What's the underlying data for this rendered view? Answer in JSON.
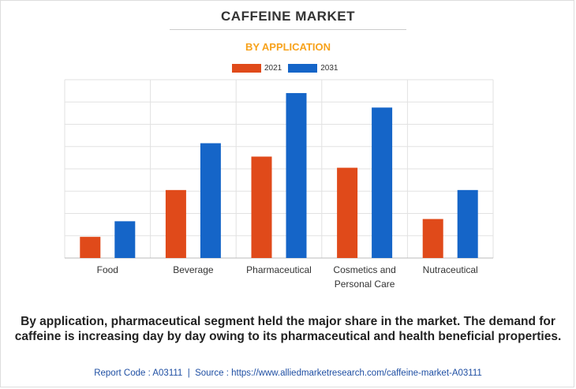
{
  "title": "CAFFEINE MARKET",
  "subtitle": "BY APPLICATION",
  "caption": "By application, pharmaceutical segment held the major share in the market. The demand for caffeine is increasing day by day owing to its pharmaceutical and health beneficial properties.",
  "footer": {
    "report_code_label": "Report Code : A03111",
    "separator": "|",
    "source_label": "Source : https://www.alliedmarketresearch.com/caffeine-market-A03111"
  },
  "colors": {
    "series_2021": "#e04a1a",
    "series_2031": "#1565c8",
    "subtitle": "#f7a21b",
    "grid": "#e2e2e2",
    "axis": "#bbbbbb"
  },
  "chart_data": {
    "type": "bar",
    "title": "CAFFEINE MARKET",
    "subtitle": "BY APPLICATION",
    "categories": [
      "Food",
      "Beverage",
      "Pharmaceutical",
      "Cosmetics and Personal Care",
      "Nutraceutical"
    ],
    "category_label_lines": [
      [
        "Food"
      ],
      [
        "Beverage"
      ],
      [
        "Pharmaceutical"
      ],
      [
        "Cosmetics and",
        "Personal Care"
      ],
      [
        "Nutraceutical"
      ]
    ],
    "series": [
      {
        "name": "2021",
        "values": [
          0.95,
          3.05,
          4.55,
          4.05,
          1.75
        ]
      },
      {
        "name": "2031",
        "values": [
          1.65,
          5.15,
          7.4,
          6.75,
          3.05
        ]
      }
    ],
    "ylim": [
      0,
      8
    ],
    "y_ticks_shown": false,
    "grid": true,
    "legend_position": "top-center",
    "xlabel": "",
    "ylabel": ""
  }
}
